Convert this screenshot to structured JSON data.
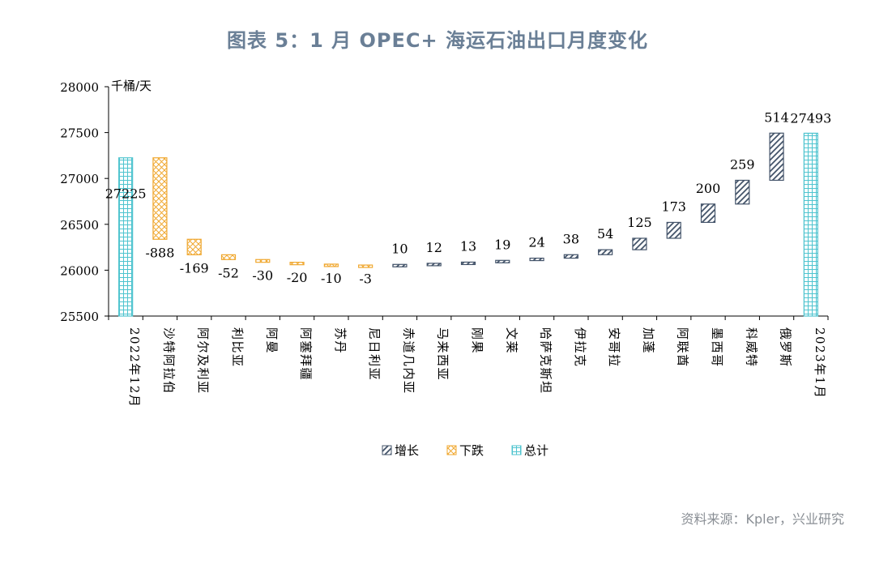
{
  "title": "图表 5：1 月 OPEC+ 海运石油出口月度变化",
  "source": "资料来源：Kpler，兴业研究",
  "chart_data": {
    "type": "bar",
    "subtype": "waterfall",
    "ylabel": "千桶/天",
    "ylim": [
      25500,
      28000
    ],
    "yticks": [
      25500,
      26000,
      26500,
      27000,
      27500,
      28000
    ],
    "grid": false,
    "legend_position": "bottom",
    "legend": [
      {
        "key": "increase",
        "label": "增长"
      },
      {
        "key": "decrease",
        "label": "下跌"
      },
      {
        "key": "total",
        "label": "总计"
      }
    ],
    "colors": {
      "increase": "#44546a",
      "decrease": "#f0a830",
      "total": "#4fc4cf"
    },
    "categories": [
      "2022年12月",
      "沙特阿拉伯",
      "阿尔及利亚",
      "利比亚",
      "阿曼",
      "阿塞拜疆",
      "苏丹",
      "尼日利亚",
      "赤道几内亚",
      "马来西亚",
      "刚果",
      "文莱",
      "哈萨克斯坦",
      "伊拉克",
      "安哥拉",
      "加蓬",
      "阿联酋",
      "墨西哥",
      "科威特",
      "俄罗斯",
      "2023年1月"
    ],
    "values": [
      27225,
      -888,
      -169,
      -52,
      -30,
      -20,
      -10,
      -3,
      10,
      12,
      13,
      19,
      24,
      38,
      54,
      125,
      173,
      200,
      259,
      514,
      27493
    ],
    "kinds": [
      "total",
      "decrease",
      "decrease",
      "decrease",
      "decrease",
      "decrease",
      "decrease",
      "decrease",
      "increase",
      "increase",
      "increase",
      "increase",
      "increase",
      "increase",
      "increase",
      "increase",
      "increase",
      "increase",
      "increase",
      "increase",
      "total"
    ],
    "data_labels": [
      "27225",
      "-888",
      "-169",
      "-52",
      "-30",
      "-20",
      "-10",
      "-3",
      "10",
      "12",
      "13",
      "19",
      "24",
      "38",
      "54",
      "125",
      "173",
      "200",
      "259",
      "514",
      "27493"
    ]
  }
}
